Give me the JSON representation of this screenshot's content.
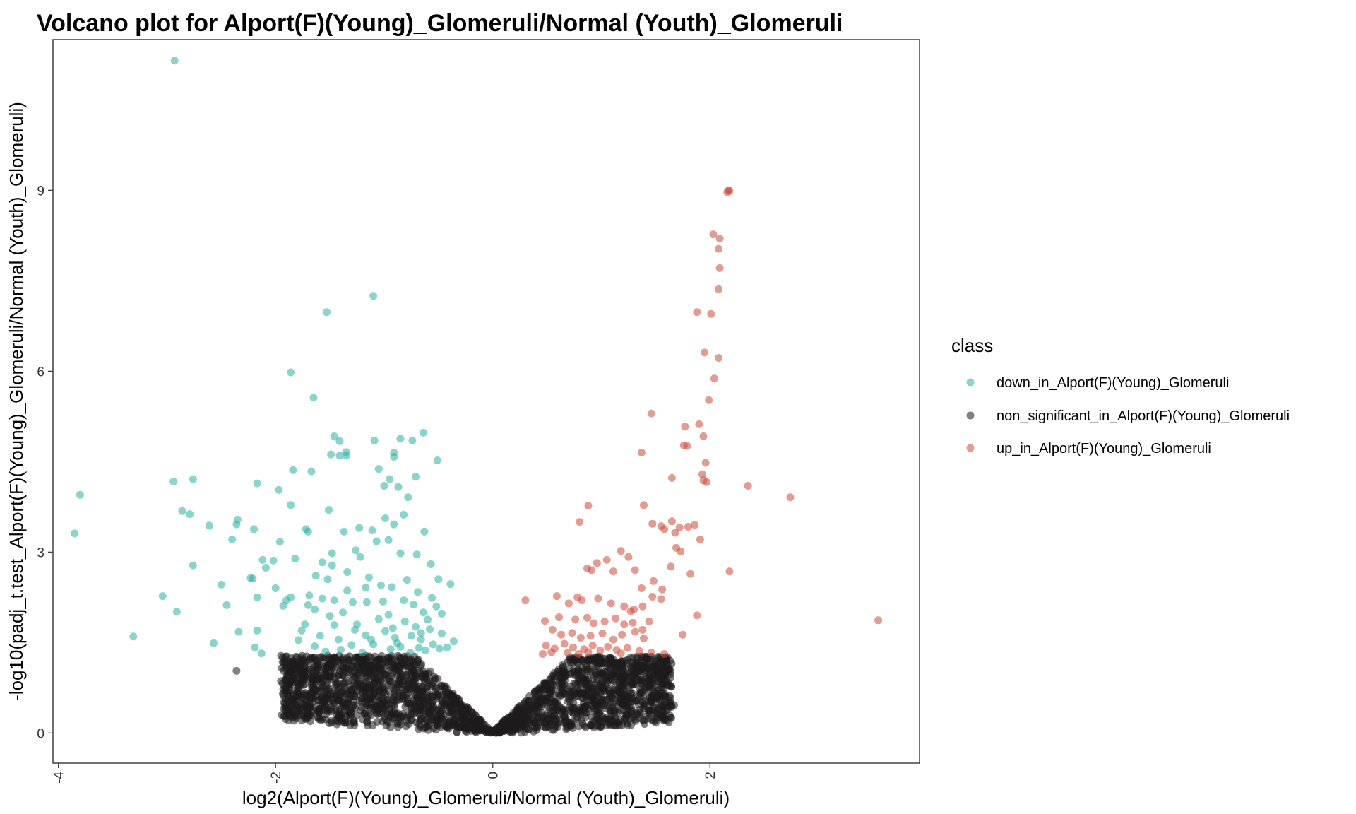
{
  "chart_data": {
    "type": "scatter",
    "title": "Volcano plot for Alport(F)(Young)_Glomeruli/Normal (Youth)_Glomeruli",
    "xlabel": "log2(Alport(F)(Young)_Glomeruli/Normal (Youth)_Glomeruli)",
    "ylabel": "-log10(padj_t.test_Alport(F)(Young)_Glomeruli/Normal (Youth)_Glomeruli)",
    "xlim": [
      -4.05,
      3.93
    ],
    "ylim": [
      -0.5,
      11.5
    ],
    "x_ticks": [
      -4,
      -2,
      0,
      2
    ],
    "y_ticks": [
      0,
      3,
      6,
      9
    ],
    "x_tick_labels": [
      "-4",
      "-2",
      "0",
      "2"
    ],
    "y_tick_labels": [
      "0",
      "3",
      "6",
      "9"
    ],
    "grid": false,
    "legend_position": "right",
    "legend_title": "class",
    "series": [
      {
        "name": "down_in_Alport(F)(Young)_Glomeruli",
        "color": "#2ab0a3",
        "points": [
          [
            -2.93,
            11.15
          ],
          [
            -1.1,
            7.25
          ],
          [
            -1.53,
            6.98
          ],
          [
            -1.86,
            5.98
          ],
          [
            -1.65,
            5.56
          ],
          [
            -1.46,
            4.92
          ],
          [
            -1.41,
            4.84
          ],
          [
            -1.09,
            4.85
          ],
          [
            -0.85,
            4.88
          ],
          [
            -0.74,
            4.85
          ],
          [
            -0.64,
            4.98
          ],
          [
            -1.49,
            4.62
          ],
          [
            -1.35,
            4.66
          ],
          [
            -1.35,
            4.6
          ],
          [
            -1.41,
            4.6
          ],
          [
            -0.91,
            4.65
          ],
          [
            -0.91,
            4.58
          ],
          [
            -0.51,
            4.52
          ],
          [
            -1.67,
            4.34
          ],
          [
            -1.84,
            4.36
          ],
          [
            -1.05,
            4.38
          ],
          [
            -0.95,
            4.21
          ],
          [
            -1.0,
            4.1
          ],
          [
            -0.71,
            4.25
          ],
          [
            -2.94,
            4.17
          ],
          [
            -2.76,
            4.21
          ],
          [
            -3.8,
            3.95
          ],
          [
            -3.85,
            3.31
          ],
          [
            -2.86,
            3.68
          ],
          [
            -2.79,
            3.63
          ],
          [
            -2.61,
            3.44
          ],
          [
            -2.35,
            3.54
          ],
          [
            -2.17,
            4.14
          ],
          [
            -1.97,
            4.03
          ],
          [
            -0.87,
            4.08
          ],
          [
            -0.78,
            3.91
          ],
          [
            -1.86,
            3.78
          ],
          [
            -1.51,
            3.7
          ],
          [
            -2.36,
            3.46
          ],
          [
            -2.2,
            3.38
          ],
          [
            -1.96,
            3.17
          ],
          [
            -1.72,
            3.38
          ],
          [
            -1.7,
            3.34
          ],
          [
            -1.37,
            3.34
          ],
          [
            -1.23,
            3.4
          ],
          [
            -1.11,
            3.36
          ],
          [
            -0.99,
            3.56
          ],
          [
            -0.82,
            3.62
          ],
          [
            -0.91,
            3.46
          ],
          [
            -0.63,
            3.34
          ],
          [
            -2.4,
            3.21
          ],
          [
            -1.82,
            2.89
          ],
          [
            -2.12,
            2.87
          ],
          [
            -2.21,
            2.56
          ],
          [
            -2.02,
            2.86
          ],
          [
            -2.76,
            2.78
          ],
          [
            -1.26,
            3.03
          ],
          [
            -1.07,
            3.18
          ],
          [
            -0.96,
            3.2
          ],
          [
            -1.22,
            2.92
          ],
          [
            -1.48,
            2.98
          ],
          [
            -1.57,
            2.83
          ],
          [
            -1.63,
            2.61
          ],
          [
            -1.48,
            2.78
          ],
          [
            -1.34,
            2.67
          ],
          [
            -1.14,
            2.58
          ],
          [
            -0.85,
            2.98
          ],
          [
            -0.7,
            2.96
          ],
          [
            -0.57,
            2.8
          ],
          [
            -0.39,
            2.47
          ],
          [
            -0.5,
            2.55
          ],
          [
            -2.09,
            2.74
          ],
          [
            -2.23,
            2.57
          ],
          [
            -2.5,
            2.46
          ],
          [
            -2.0,
            2.4
          ],
          [
            -1.69,
            2.28
          ],
          [
            -2.17,
            2.25
          ],
          [
            -1.9,
            2.2
          ],
          [
            -1.57,
            2.23
          ],
          [
            -1.7,
            2.12
          ],
          [
            -1.46,
            2.2
          ],
          [
            -1.34,
            2.36
          ],
          [
            -1.17,
            2.41
          ],
          [
            -1.16,
            2.17
          ],
          [
            -1.03,
            2.45
          ],
          [
            -0.93,
            2.42
          ],
          [
            -0.79,
            2.54
          ],
          [
            -0.69,
            2.34
          ],
          [
            -0.56,
            2.24
          ],
          [
            -0.52,
            2.1
          ],
          [
            -3.04,
            2.27
          ],
          [
            -2.91,
            2.01
          ],
          [
            -2.45,
            2.12
          ],
          [
            -1.93,
            2.11
          ],
          [
            -1.73,
            1.8
          ],
          [
            -1.5,
            1.94
          ],
          [
            -1.38,
            2.0
          ],
          [
            -1.29,
            2.17
          ],
          [
            -1.05,
            1.89
          ],
          [
            -0.96,
            1.96
          ],
          [
            -0.92,
            1.74
          ],
          [
            -0.81,
            1.85
          ],
          [
            -0.71,
            1.76
          ],
          [
            -0.6,
            1.88
          ],
          [
            -0.47,
            1.65
          ],
          [
            -0.36,
            1.52
          ],
          [
            -2.17,
            1.7
          ],
          [
            -2.34,
            1.68
          ],
          [
            -1.76,
            1.7
          ],
          [
            -1.59,
            1.61
          ],
          [
            -1.46,
            1.79
          ],
          [
            -1.42,
            1.55
          ],
          [
            -1.27,
            1.71
          ],
          [
            -1.17,
            1.62
          ],
          [
            -1.12,
            1.55
          ],
          [
            -0.99,
            1.69
          ],
          [
            -0.88,
            1.49
          ],
          [
            -0.75,
            1.61
          ],
          [
            -0.66,
            1.55
          ],
          [
            -0.55,
            1.47
          ],
          [
            -0.42,
            1.42
          ],
          [
            -3.31,
            1.6
          ],
          [
            -2.57,
            1.49
          ],
          [
            -2.19,
            1.42
          ],
          [
            -2.13,
            1.32
          ],
          [
            -1.79,
            1.54
          ],
          [
            -1.64,
            1.44
          ],
          [
            -1.54,
            1.35
          ],
          [
            -1.4,
            1.38
          ],
          [
            -1.3,
            1.46
          ],
          [
            -1.1,
            1.47
          ],
          [
            -0.94,
            1.39
          ],
          [
            -0.85,
            1.43
          ],
          [
            -0.76,
            1.33
          ],
          [
            -0.68,
            1.41
          ],
          [
            -0.62,
            1.37
          ],
          [
            -0.49,
            1.4
          ],
          [
            -1.64,
            2.05
          ],
          [
            -1.25,
            1.8
          ],
          [
            -0.82,
            2.2
          ],
          [
            -0.64,
            2.0
          ],
          [
            -1.01,
            2.18
          ],
          [
            -0.73,
            2.13
          ],
          [
            -1.52,
            2.55
          ],
          [
            -0.47,
            1.98
          ],
          [
            -0.66,
            1.66
          ],
          [
            -1.2,
            1.33
          ],
          [
            -0.9,
            1.58
          ],
          [
            -0.58,
            1.72
          ],
          [
            -1.86,
            2.25
          ]
        ]
      },
      {
        "name": "non_significant_in_Alport(F)(Young)_Glomeruli",
        "color": "#1e1c1c",
        "points": [
          [
            -2.36,
            1.03
          ],
          [
            -1.95,
            1.28
          ],
          [
            -1.89,
            0.93
          ],
          [
            -1.82,
            1.05
          ],
          [
            -1.95,
            0.86
          ],
          [
            -1.93,
            0.72
          ],
          [
            -1.57,
            0.49
          ],
          [
            -1.27,
            0.41
          ],
          [
            1.14,
            0.43
          ],
          [
            1.23,
            0.3
          ],
          [
            1.56,
            0.3
          ],
          [
            1.58,
            0.22
          ],
          [
            1.67,
            0.46
          ],
          [
            1.53,
            0.4
          ],
          [
            1.05,
            0.13
          ]
        ]
      },
      {
        "name": "up_in_Alport(F)(Young)_Glomeruli",
        "color": "#cc4a36",
        "points": [
          [
            2.17,
            9.0
          ],
          [
            2.18,
            8.99
          ],
          [
            2.16,
            8.97
          ],
          [
            2.03,
            8.27
          ],
          [
            2.09,
            8.2
          ],
          [
            2.08,
            8.03
          ],
          [
            2.09,
            7.71
          ],
          [
            2.08,
            7.36
          ],
          [
            1.88,
            6.98
          ],
          [
            2.01,
            6.95
          ],
          [
            1.95,
            6.31
          ],
          [
            2.08,
            6.22
          ],
          [
            2.04,
            5.88
          ],
          [
            1.99,
            5.52
          ],
          [
            1.46,
            5.3
          ],
          [
            1.77,
            5.08
          ],
          [
            1.9,
            5.12
          ],
          [
            1.94,
            4.92
          ],
          [
            1.76,
            4.77
          ],
          [
            1.79,
            4.76
          ],
          [
            1.37,
            4.65
          ],
          [
            1.96,
            4.48
          ],
          [
            1.93,
            4.29
          ],
          [
            1.65,
            4.23
          ],
          [
            1.94,
            4.19
          ],
          [
            1.97,
            4.16
          ],
          [
            2.35,
            4.1
          ],
          [
            2.74,
            3.91
          ],
          [
            0.88,
            3.77
          ],
          [
            1.39,
            3.78
          ],
          [
            0.8,
            3.5
          ],
          [
            1.47,
            3.47
          ],
          [
            1.55,
            3.43
          ],
          [
            1.65,
            3.51
          ],
          [
            1.72,
            3.41
          ],
          [
            1.58,
            3.38
          ],
          [
            1.68,
            3.32
          ],
          [
            1.8,
            3.42
          ],
          [
            1.86,
            3.45
          ],
          [
            1.91,
            3.21
          ],
          [
            1.69,
            3.07
          ],
          [
            1.73,
            3.01
          ],
          [
            1.18,
            3.02
          ],
          [
            1.05,
            2.87
          ],
          [
            1.25,
            2.92
          ],
          [
            0.96,
            2.82
          ],
          [
            0.87,
            2.73
          ],
          [
            0.91,
            2.7
          ],
          [
            1.11,
            2.68
          ],
          [
            1.31,
            2.7
          ],
          [
            1.64,
            2.76
          ],
          [
            1.82,
            2.64
          ],
          [
            2.18,
            2.68
          ],
          [
            3.55,
            1.87
          ],
          [
            0.3,
            2.2
          ],
          [
            0.59,
            2.27
          ],
          [
            0.7,
            2.15
          ],
          [
            0.78,
            2.25
          ],
          [
            0.82,
            2.2
          ],
          [
            0.97,
            2.23
          ],
          [
            1.09,
            2.15
          ],
          [
            1.21,
            2.1
          ],
          [
            1.27,
            2.02
          ],
          [
            1.3,
            2.05
          ],
          [
            1.38,
            2.1
          ],
          [
            1.47,
            2.26
          ],
          [
            1.55,
            2.22
          ],
          [
            1.37,
            2.4
          ],
          [
            1.48,
            2.52
          ],
          [
            1.56,
            2.38
          ],
          [
            1.88,
            1.95
          ],
          [
            0.48,
            1.86
          ],
          [
            0.61,
            1.92
          ],
          [
            0.76,
            1.88
          ],
          [
            0.87,
            1.91
          ],
          [
            0.93,
            1.82
          ],
          [
            1.03,
            1.85
          ],
          [
            1.13,
            1.9
          ],
          [
            1.21,
            1.8
          ],
          [
            1.29,
            1.83
          ],
          [
            1.38,
            1.71
          ],
          [
            1.44,
            1.85
          ],
          [
            1.75,
            1.63
          ],
          [
            0.55,
            1.71
          ],
          [
            0.63,
            1.63
          ],
          [
            0.73,
            1.66
          ],
          [
            0.81,
            1.58
          ],
          [
            0.9,
            1.61
          ],
          [
            1.01,
            1.65
          ],
          [
            1.11,
            1.55
          ],
          [
            1.19,
            1.63
          ],
          [
            1.31,
            1.68
          ],
          [
            1.39,
            1.57
          ],
          [
            0.49,
            1.45
          ],
          [
            0.57,
            1.4
          ],
          [
            0.66,
            1.48
          ],
          [
            0.74,
            1.42
          ],
          [
            0.84,
            1.39
          ],
          [
            0.92,
            1.45
          ],
          [
            0.99,
            1.37
          ],
          [
            1.06,
            1.43
          ],
          [
            1.14,
            1.38
          ],
          [
            1.24,
            1.41
          ],
          [
            1.35,
            1.36
          ],
          [
            1.46,
            1.33
          ],
          [
            1.58,
            1.31
          ],
          [
            0.46,
            1.31
          ],
          [
            0.54,
            1.34
          ],
          [
            0.69,
            1.33
          ],
          [
            0.79,
            1.31
          ],
          [
            0.88,
            1.34
          ],
          [
            1.18,
            1.32
          ]
        ]
      }
    ],
    "background_cloud": {
      "series": "non_significant_in_Alport(F)(Young)_Glomeruli",
      "shape": "V-shaped dense cluster of non-significant points",
      "x_range": [
        -1.95,
        1.65
      ],
      "y_range": [
        0.0,
        1.3
      ],
      "approx_point_count": 2400
    }
  },
  "legend": {
    "title": "class",
    "items": [
      {
        "label": "down_in_Alport(F)(Young)_Glomeruli",
        "color": "#2ab0a3"
      },
      {
        "label": "non_significant_in_Alport(F)(Young)_Glomeruli",
        "color": "#1e1c1c"
      },
      {
        "label": "up_in_Alport(F)(Young)_Glomeruli",
        "color": "#cc4a36"
      }
    ]
  }
}
